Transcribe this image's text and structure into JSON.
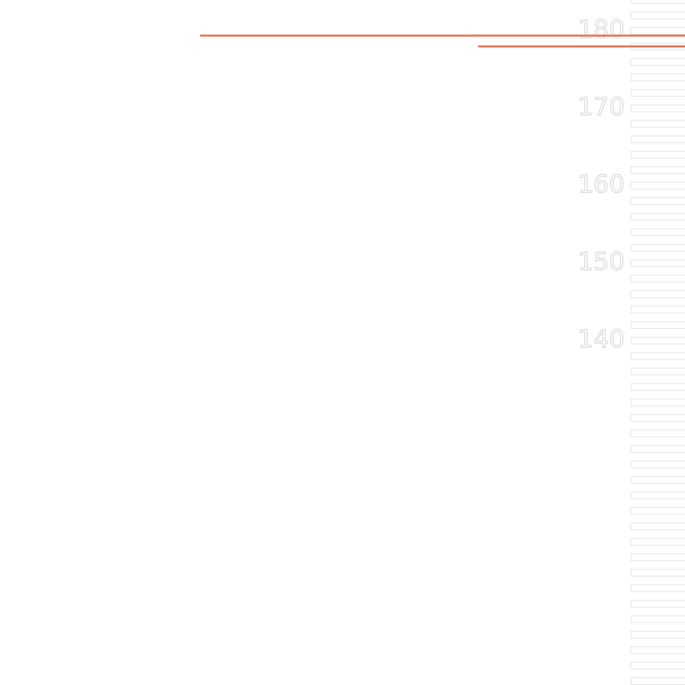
{
  "chart_data": {
    "type": "line",
    "xlim": [
      0,
      100
    ],
    "ylim": [
      95.5,
      184
    ],
    "yticks": [
      140,
      150,
      160,
      170,
      180
    ],
    "minor_yticks": [
      96,
      98,
      100,
      102,
      104,
      106,
      108,
      110,
      112,
      114,
      116,
      118,
      120,
      122,
      124,
      126,
      128,
      130,
      132,
      134,
      136,
      138,
      140,
      142,
      144,
      146,
      148,
      150,
      152,
      154,
      156,
      158,
      160,
      162,
      164,
      166,
      168,
      170,
      172,
      174,
      176,
      178,
      180,
      182,
      184
    ],
    "series": [
      {
        "color": "#e8744f",
        "x": [
          29.2,
          100
        ],
        "values": [
          179.4,
          179.4
        ]
      },
      {
        "color": "#e8744f",
        "x": [
          69.8,
          100
        ],
        "values": [
          178,
          178
        ]
      }
    ]
  }
}
